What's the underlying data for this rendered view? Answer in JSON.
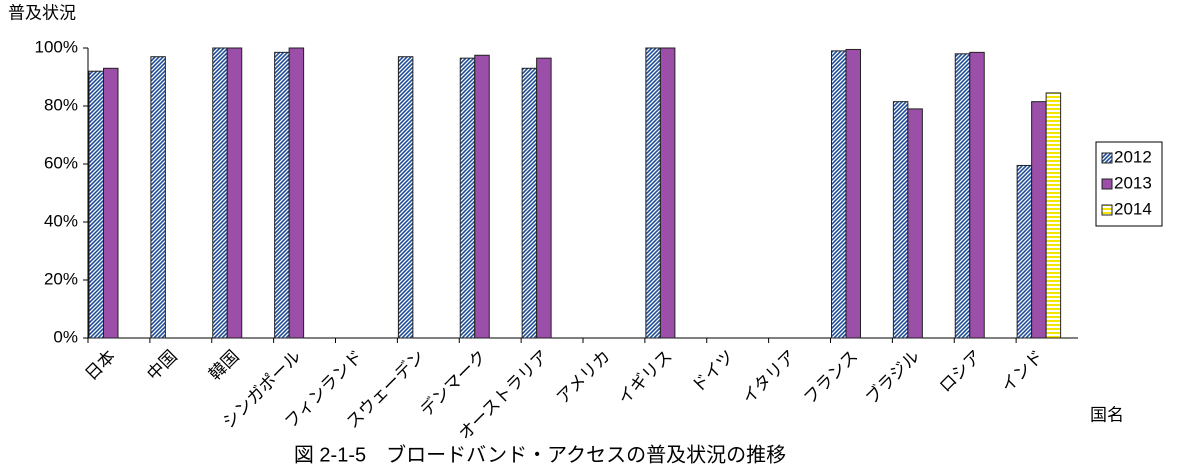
{
  "chart_data": {
    "type": "bar",
    "caption": "図 2-1-5　ブロードバンド・アクセスの普及状況の推移",
    "y_label": "普及状況",
    "x_label": "国名",
    "categories": [
      "日本",
      "中国",
      "韓国",
      "シンガポール",
      "フィンランド",
      "スウェーデン",
      "デンマーク",
      "オーストラリア",
      "アメリカ",
      "イギリス",
      "ドイツ",
      "イタリア",
      "フランス",
      "ブラジル",
      "ロシア",
      "インド"
    ],
    "series": [
      {
        "name": "2012",
        "color": "#1f4e9c",
        "pattern": "diagonal",
        "values": [
          92,
          97,
          100,
          98.5,
          null,
          97,
          96.5,
          93,
          null,
          100,
          null,
          null,
          99,
          81.5,
          98,
          59.5
        ]
      },
      {
        "name": "2013",
        "color": "#9b4fa8",
        "pattern": "solid",
        "values": [
          93,
          null,
          100,
          100,
          null,
          null,
          97.5,
          96.5,
          null,
          100,
          null,
          null,
          99.5,
          79,
          98.5,
          81.5
        ]
      },
      {
        "name": "2014",
        "color": "#f2e600",
        "pattern": "horizontal",
        "values": [
          null,
          null,
          null,
          null,
          null,
          null,
          null,
          null,
          null,
          null,
          null,
          null,
          null,
          null,
          null,
          84.5
        ]
      }
    ],
    "ylim": [
      0,
      100
    ],
    "yticks": [
      {
        "value": 0,
        "label": "0%"
      },
      {
        "value": 20,
        "label": "20%"
      },
      {
        "value": 40,
        "label": "40%"
      },
      {
        "value": 60,
        "label": "60%"
      },
      {
        "value": 80,
        "label": "80%"
      },
      {
        "value": 100,
        "label": "100%"
      }
    ],
    "grid": false,
    "legend": "right"
  }
}
